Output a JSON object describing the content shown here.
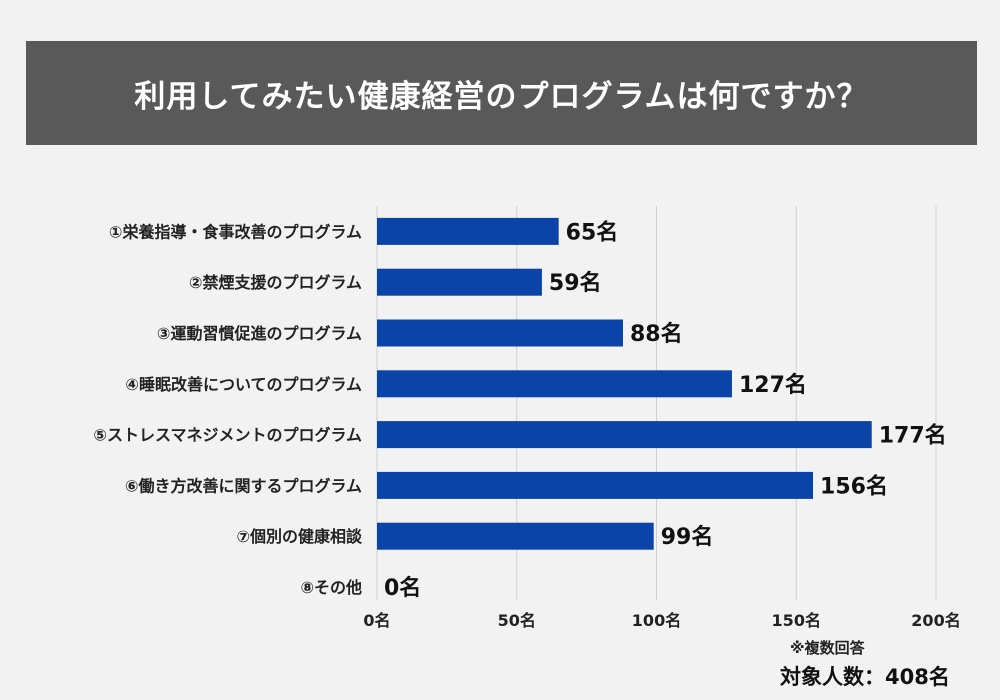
{
  "title": "利用してみたい健康経営のプログラムは何ですか？",
  "colors": {
    "bar": "#0a44a8",
    "banner": "#595959",
    "background": "#f2f2f2",
    "grid": "#d0d0d0"
  },
  "chart_data": {
    "type": "bar",
    "orientation": "horizontal",
    "title": "利用してみたい健康経営のプログラムは何ですか？",
    "categories": [
      "①栄養指導・食事改善のプログラム",
      "②禁煙支援のプログラム",
      "③運動習慣促進のプログラム",
      "④睡眠改善についてのプログラム",
      "⑤ストレスマネジメントのプログラム",
      "⑥働き方改善に関するプログラム",
      "⑦個別の健康相談",
      "⑧その他"
    ],
    "values": [
      65,
      59,
      88,
      127,
      177,
      156,
      99,
      0
    ],
    "value_labels": [
      "65名",
      "59名",
      "88名",
      "127名",
      "177名",
      "156名",
      "99名",
      "0名"
    ],
    "xlim": [
      0,
      200
    ],
    "xticks": [
      0,
      50,
      100,
      150,
      200
    ],
    "xtick_labels": [
      "0名",
      "50名",
      "100名",
      "150名",
      "200名"
    ],
    "grid": true,
    "unit": "名"
  },
  "footnote": "※複数回答",
  "respondents": "対象人数：408名"
}
